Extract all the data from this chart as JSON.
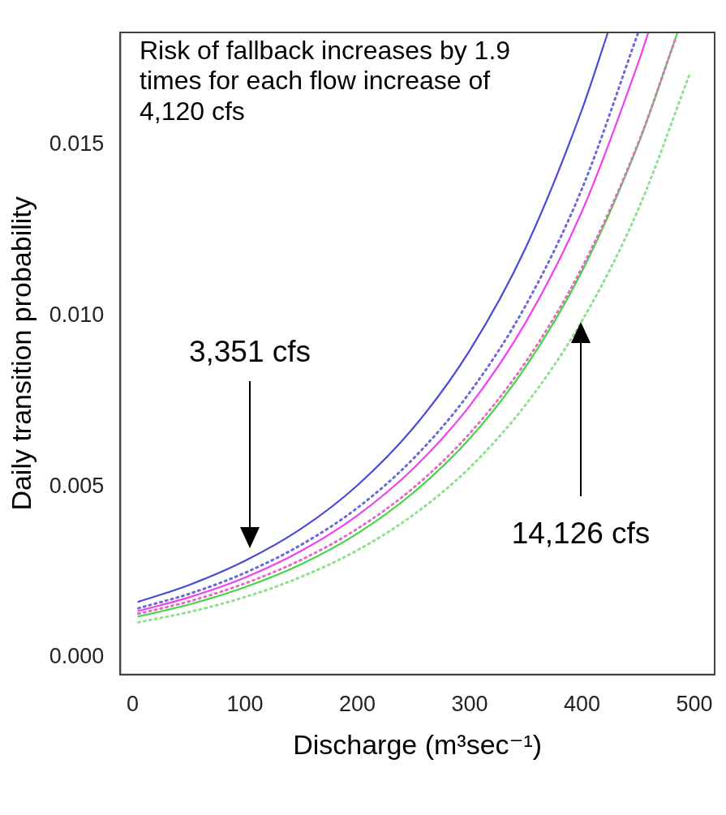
{
  "chart_data": {
    "type": "line",
    "xlabel": "Discharge (m³sec⁻¹)",
    "ylabel": "Daily transition probability",
    "xlim": [
      -11,
      518
    ],
    "xticks": [
      0,
      100,
      200,
      300,
      400,
      500
    ],
    "ylim": [
      -0.0005,
      0.0183
    ],
    "yticks": [
      {
        "value": 0,
        "label": "0.000"
      },
      {
        "value": 0.005,
        "label": "0.005"
      },
      {
        "value": 0.01,
        "label": "0.010"
      },
      {
        "value": 0.015,
        "label": "0.015"
      }
    ],
    "grid": false,
    "legend": false,
    "marker": "none",
    "series": [
      {
        "color": "#4a4ad8",
        "line_style": "solid",
        "x": [
          5,
          50,
          100,
          150,
          200,
          250,
          300,
          350,
          400,
          423
        ],
        "values": [
          0.00163,
          0.00212,
          0.00283,
          0.00377,
          0.00504,
          0.00673,
          0.00899,
          0.01201,
          0.01605,
          0.0183
        ]
      },
      {
        "color": "#6a6ad8",
        "line_style": "dotted",
        "x": [
          5,
          50,
          100,
          150,
          200,
          250,
          300,
          350,
          400,
          450
        ],
        "values": [
          0.00144,
          0.00186,
          0.00248,
          0.0033,
          0.00438,
          0.00583,
          0.00776,
          0.01032,
          0.01373,
          0.0183
        ]
      },
      {
        "color": "#f040f0",
        "line_style": "solid",
        "x": [
          5,
          50,
          100,
          150,
          200,
          250,
          300,
          350,
          400,
          450,
          459
        ],
        "values": [
          0.00136,
          0.00176,
          0.00234,
          0.00312,
          0.00416,
          0.00554,
          0.00737,
          0.00982,
          0.01307,
          0.01741,
          0.0183
        ]
      },
      {
        "color": "#e070c0",
        "line_style": "dotted",
        "x": [
          5,
          50,
          100,
          150,
          200,
          250,
          300,
          350,
          400,
          450,
          483
        ],
        "values": [
          0.00128,
          0.00164,
          0.00217,
          0.00286,
          0.00377,
          0.00497,
          0.00656,
          0.00866,
          0.01142,
          0.01506,
          0.0181
        ]
      },
      {
        "color": "#40d840",
        "line_style": "solid",
        "x": [
          5,
          50,
          100,
          150,
          200,
          250,
          300,
          350,
          400,
          450,
          485
        ],
        "values": [
          0.0012,
          0.00155,
          0.00206,
          0.00273,
          0.00363,
          0.00483,
          0.00641,
          0.00852,
          0.01131,
          0.01503,
          0.0183
        ]
      },
      {
        "color": "#90e090",
        "line_style": "dotted",
        "x": [
          5,
          50,
          100,
          150,
          200,
          250,
          300,
          350,
          400,
          450,
          496
        ],
        "values": [
          0.00103,
          0.00133,
          0.00177,
          0.00236,
          0.00314,
          0.00418,
          0.00556,
          0.00741,
          0.00986,
          0.01312,
          0.0171
        ]
      }
    ],
    "annotations": [
      "Risk of fallback increases by 1.9 times for each flow increase of 4,120 cfs",
      "3,351 cfs",
      "14,126 cfs"
    ]
  }
}
